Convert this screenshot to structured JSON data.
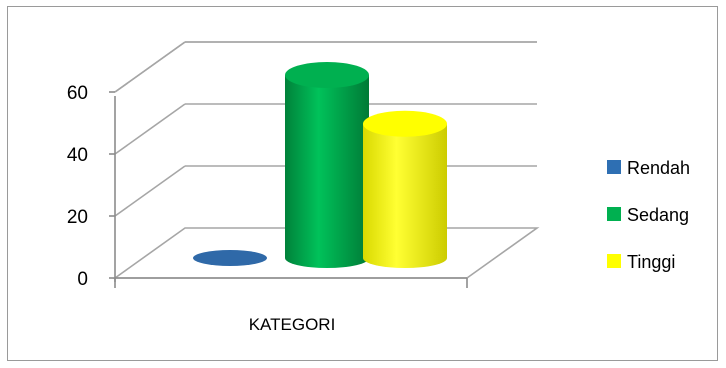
{
  "chart_data": {
    "type": "bar",
    "categories": [
      "KATEGORI"
    ],
    "series": [
      {
        "name": "Rendah",
        "values": [
          0
        ],
        "color": "#2e6fb3"
      },
      {
        "name": "Sedang",
        "values": [
          60
        ],
        "color": "#00b050"
      },
      {
        "name": "Tinggi",
        "values": [
          44
        ],
        "color": "#ffff00"
      }
    ],
    "ylim": [
      0,
      60
    ],
    "yticks": [
      "0",
      "20",
      "40",
      "60"
    ],
    "grid": true,
    "legend": "right",
    "three_d": true,
    "bar_shape": "cylinder"
  }
}
